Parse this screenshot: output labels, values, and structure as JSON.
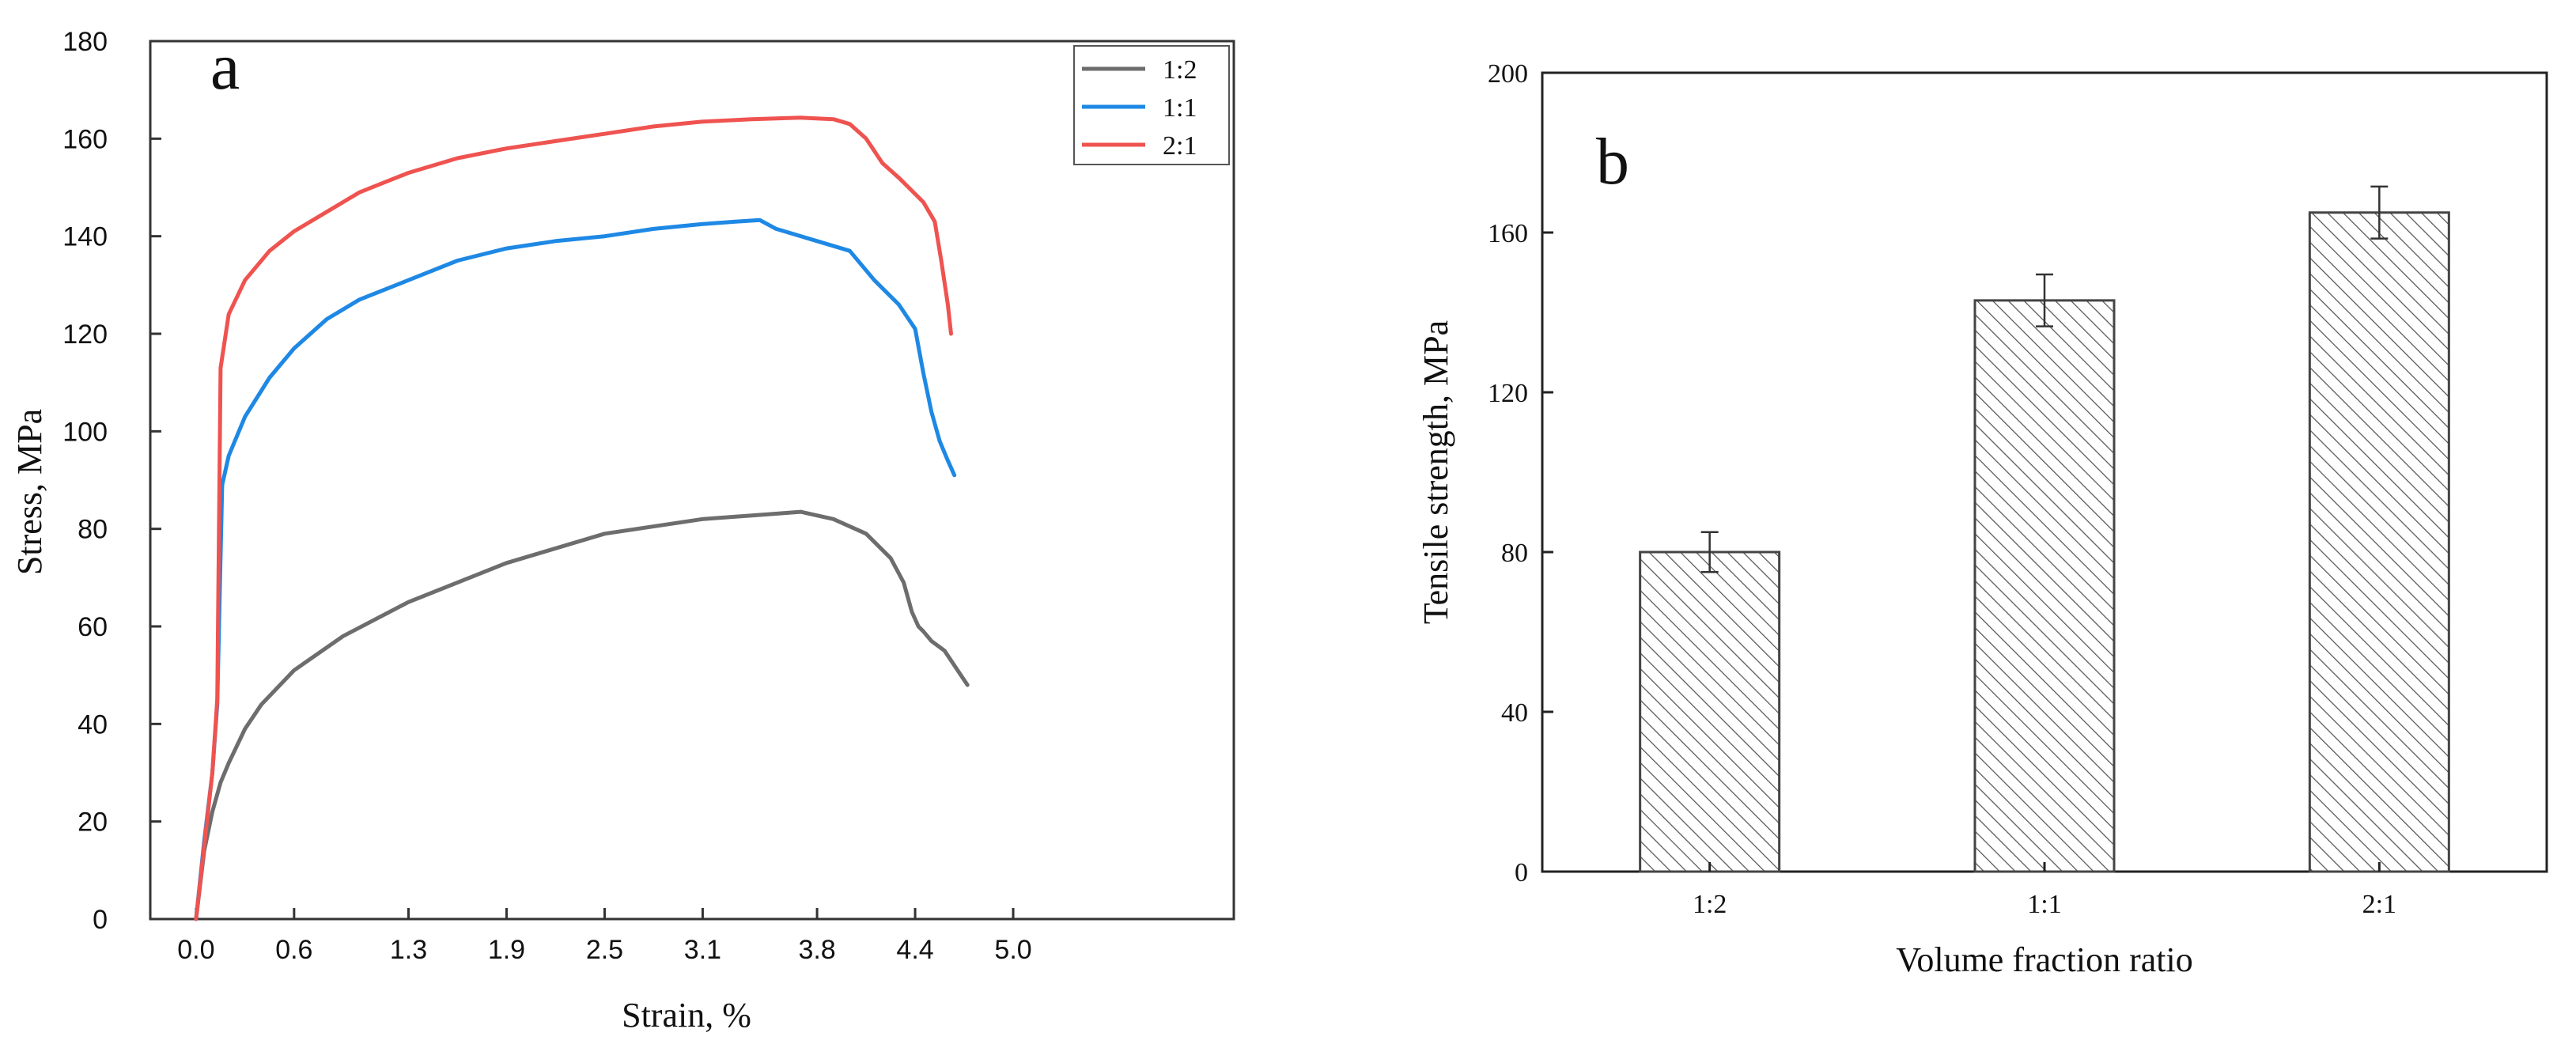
{
  "chart_data": [
    {
      "type": "line",
      "panel_label": "a",
      "xlabel": "Strain, %",
      "ylabel": "Stress, MPa",
      "xlim": [
        -0.28,
        6.35
      ],
      "ylim": [
        0,
        180
      ],
      "xticks": [
        0.0,
        0.6,
        1.3,
        1.9,
        2.5,
        3.1,
        3.8,
        4.4,
        5.0
      ],
      "xtick_labels": [
        "0.0",
        "0.6",
        "1.3",
        "1.9",
        "2.5",
        "3.1",
        "3.8",
        "4.4",
        "5.0"
      ],
      "yticks": [
        0,
        20,
        40,
        60,
        80,
        100,
        120,
        140,
        160,
        180
      ],
      "ytick_labels": [
        "0",
        "20",
        "40",
        "60",
        "80",
        "100",
        "120",
        "140",
        "160",
        "180"
      ],
      "grid": false,
      "legend_position": "top-right",
      "series": [
        {
          "name": "1:2",
          "color": "#6d6d6d",
          "x": [
            0.0,
            0.05,
            0.1,
            0.15,
            0.2,
            0.3,
            0.4,
            0.6,
            0.9,
            1.3,
            1.9,
            2.5,
            3.1,
            3.5,
            3.7,
            3.9,
            4.1,
            4.25,
            4.33,
            4.38,
            4.42,
            4.45,
            4.5,
            4.58,
            4.66,
            4.72
          ],
          "y": [
            0,
            14,
            22,
            28,
            32,
            39,
            44,
            51,
            58,
            65,
            73,
            79,
            82,
            83,
            83.5,
            82,
            79,
            74,
            69,
            63,
            60,
            59,
            57,
            55,
            51,
            48
          ]
        },
        {
          "name": "1:1",
          "color": "#1e88e5",
          "x": [
            0.0,
            0.05,
            0.1,
            0.13,
            0.16,
            0.2,
            0.3,
            0.45,
            0.6,
            0.8,
            1.0,
            1.3,
            1.6,
            1.9,
            2.2,
            2.5,
            2.8,
            3.1,
            3.3,
            3.45,
            3.55,
            3.8,
            4.0,
            4.15,
            4.3,
            4.4,
            4.45,
            4.5,
            4.55,
            4.6,
            4.64
          ],
          "y": [
            0,
            16,
            30,
            44,
            89,
            95,
            103,
            111,
            117,
            123,
            127,
            131,
            135,
            137.5,
            139,
            140,
            141.5,
            142.5,
            143,
            143.3,
            141.5,
            139,
            137,
            131,
            126,
            121,
            112,
            104,
            98,
            94,
            91
          ]
        },
        {
          "name": "2:1",
          "color": "#ef5350",
          "x": [
            0.0,
            0.05,
            0.1,
            0.13,
            0.15,
            0.2,
            0.3,
            0.45,
            0.6,
            0.8,
            1.0,
            1.3,
            1.6,
            1.9,
            2.2,
            2.5,
            2.8,
            3.1,
            3.4,
            3.7,
            3.9,
            4.0,
            4.1,
            4.2,
            4.3,
            4.45,
            4.52,
            4.56,
            4.6,
            4.62
          ],
          "y": [
            0,
            15,
            30,
            45,
            113,
            124,
            131,
            137,
            141,
            145,
            149,
            153,
            156,
            158,
            159.5,
            161,
            162.5,
            163.5,
            164,
            164.3,
            164,
            163,
            160,
            155,
            152,
            147,
            143,
            135,
            126,
            120
          ]
        }
      ]
    },
    {
      "type": "bar",
      "panel_label": "b",
      "xlabel": "Volume fraction ratio",
      "ylabel": "Tensile strength, MPa",
      "categories": [
        "1:2",
        "1:1",
        "2:1"
      ],
      "values": [
        80,
        143,
        165
      ],
      "error": [
        5,
        6.5,
        6.5
      ],
      "ylim": [
        0,
        200
      ],
      "yticks": [
        0,
        40,
        80,
        120,
        160,
        200
      ],
      "ytick_labels": [
        "0",
        "40",
        "80",
        "120",
        "160",
        "200"
      ],
      "grid": false,
      "bar_fill": "hatched gray",
      "bar_edge_color": "#444444"
    }
  ]
}
